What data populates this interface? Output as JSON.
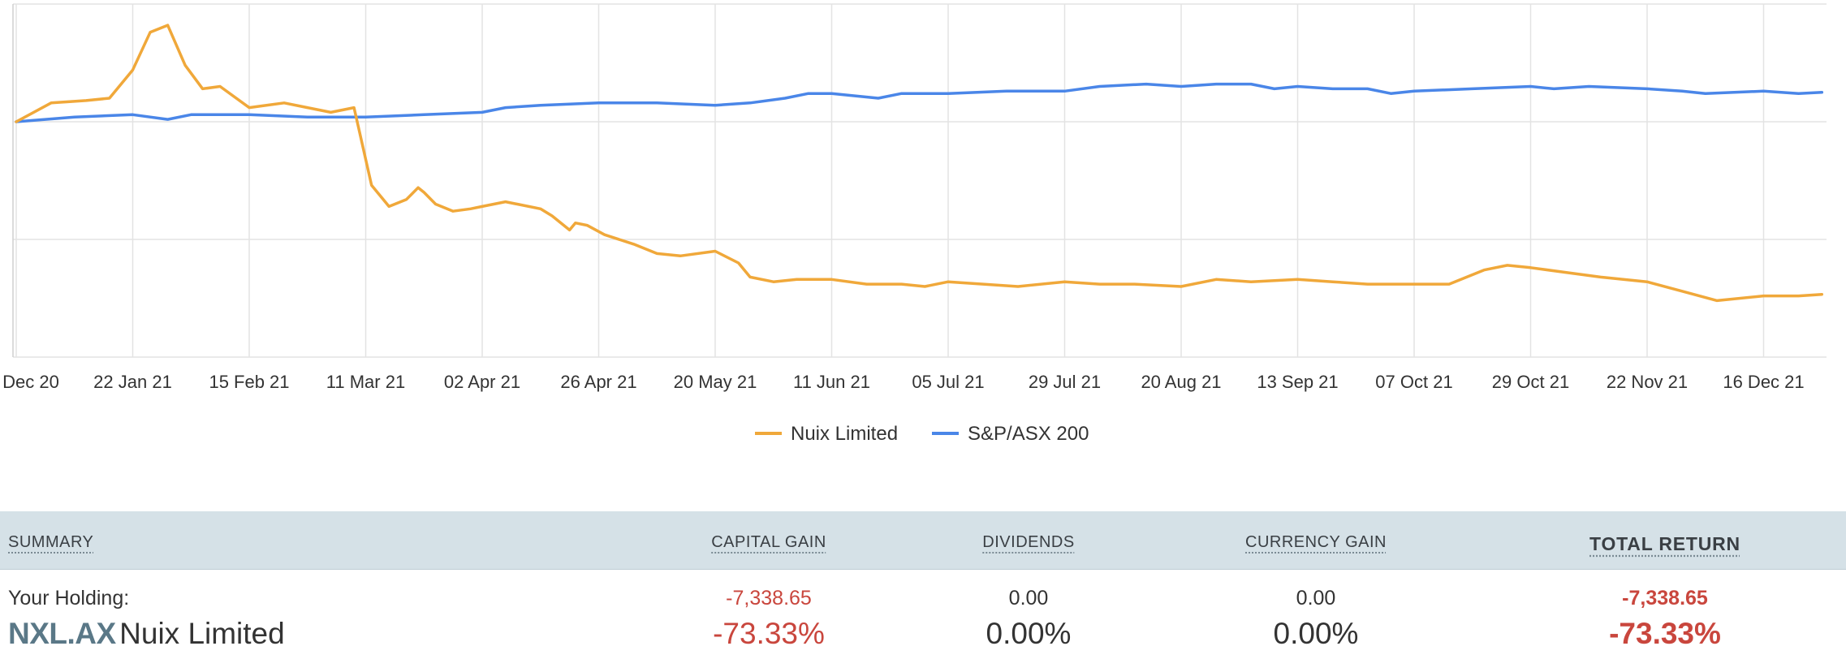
{
  "chart_data": {
    "type": "line",
    "title": "",
    "xlabel": "",
    "ylabel": "",
    "ylim": [
      -100,
      50
    ],
    "grid": true,
    "legend_position": "bottom-center",
    "x_ticks": [
      "Dec 20",
      "22 Jan 21",
      "15 Feb 21",
      "11 Mar 21",
      "02 Apr 21",
      "26 Apr 21",
      "20 May 21",
      "11 Jun 21",
      "05 Jul 21",
      "29 Jul 21",
      "20 Aug 21",
      "13 Sep 21",
      "07 Oct 21",
      "29 Oct 21",
      "22 Nov 21",
      "16 Dec 21"
    ],
    "series": [
      {
        "name": "Nuix Limited",
        "color": "#f0a83a",
        "x": [
          0,
          0.3,
          0.6,
          0.8,
          1.0,
          1.15,
          1.3,
          1.45,
          1.6,
          1.75,
          2.0,
          2.3,
          2.5,
          2.7,
          2.9,
          3.05,
          3.2,
          3.35,
          3.45,
          3.5,
          3.6,
          3.75,
          3.9,
          4.0,
          4.2,
          4.5,
          4.6,
          4.75,
          4.8,
          4.9,
          5.05,
          5.3,
          5.5,
          5.7,
          6.0,
          6.2,
          6.3,
          6.5,
          6.7,
          7.0,
          7.3,
          7.6,
          7.8,
          8.0,
          8.3,
          8.6,
          9.0,
          9.3,
          9.6,
          10.0,
          10.3,
          10.6,
          11.0,
          11.3,
          11.6,
          12.0,
          12.3,
          12.6,
          12.8,
          13.0,
          13.3,
          13.6,
          14.0,
          14.3,
          14.6,
          15.0,
          15.3,
          15.5
        ],
        "values": [
          0,
          8,
          9,
          10,
          22,
          38,
          41,
          24,
          14,
          15,
          6,
          8,
          6,
          4,
          6,
          -27,
          -36,
          -33,
          -28,
          -30,
          -35,
          -38,
          -37,
          -36,
          -34,
          -37,
          -40,
          -46,
          -43,
          -44,
          -48,
          -52,
          -56,
          -57,
          -55,
          -60,
          -66,
          -68,
          -67,
          -67,
          -69,
          -69,
          -70,
          -68,
          -69,
          -70,
          -68,
          -69,
          -69,
          -70,
          -67,
          -68,
          -67,
          -68,
          -69,
          -69,
          -69,
          -63,
          -61,
          -62,
          -64,
          -66,
          -68,
          -72,
          -76,
          -74,
          -74,
          -73.33
        ]
      },
      {
        "name": "S&P/ASX 200",
        "color": "#4a86e8",
        "x": [
          0,
          0.5,
          1.0,
          1.3,
          1.5,
          2.0,
          2.5,
          3.0,
          3.5,
          4.0,
          4.2,
          4.5,
          5.0,
          5.5,
          6.0,
          6.3,
          6.6,
          6.8,
          7.0,
          7.4,
          7.6,
          8.0,
          8.5,
          9.0,
          9.3,
          9.7,
          10.0,
          10.3,
          10.6,
          10.8,
          11.0,
          11.3,
          11.6,
          11.8,
          12.0,
          12.5,
          13.0,
          13.2,
          13.5,
          14.0,
          14.3,
          14.5,
          15.0,
          15.3,
          15.5
        ],
        "values": [
          0,
          2,
          3,
          1,
          3,
          3,
          2,
          2,
          3,
          4,
          6,
          7,
          8,
          8,
          7,
          8,
          10,
          12,
          12,
          10,
          12,
          12,
          13,
          13,
          15,
          16,
          15,
          16,
          16,
          14,
          15,
          14,
          14,
          12,
          13,
          14,
          15,
          14,
          15,
          14,
          13,
          12,
          13,
          12,
          12.5
        ]
      }
    ]
  },
  "summary": {
    "headers": {
      "summary": "SUMMARY",
      "capital_gain": "CAPITAL GAIN",
      "dividends": "DIVIDENDS",
      "currency_gain": "CURRENCY GAIN",
      "total_return": "TOTAL RETURN"
    },
    "holding_label": "Your Holding:",
    "ticker": "NXL.AX",
    "company": "Nuix Limited",
    "capital_gain": {
      "amount": "-7,338.65",
      "percent": "-73.33%"
    },
    "dividends": {
      "amount": "0.00",
      "percent": "0.00%"
    },
    "currency_gain": {
      "amount": "0.00",
      "percent": "0.00%"
    },
    "total_return": {
      "amount": "-7,338.65",
      "percent": "-73.33%"
    },
    "colors": {
      "negative": "#c9463d",
      "header_bg": "#d5e1e7",
      "ticker": "#5a7887"
    }
  }
}
